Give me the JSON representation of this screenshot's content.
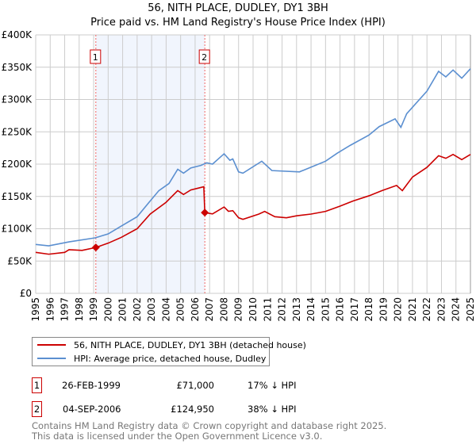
{
  "chart_data": {
    "type": "line",
    "title": "56, NITH PLACE, DUDLEY, DY1 3BH",
    "subtitle": "Price paid vs. HM Land Registry's House Price Index (HPI)",
    "xlim": [
      1995,
      2025
    ],
    "ylim": [
      0,
      400000
    ],
    "x_ticks": [
      "1995",
      "1996",
      "1997",
      "1998",
      "1999",
      "2000",
      "2001",
      "2002",
      "2003",
      "2004",
      "2005",
      "2006",
      "2007",
      "2008",
      "2009",
      "2010",
      "2011",
      "2012",
      "2013",
      "2014",
      "2015",
      "2016",
      "2017",
      "2018",
      "2019",
      "2020",
      "2021",
      "2022",
      "2023",
      "2024",
      "2025"
    ],
    "y_ticks": [
      {
        "v": 0,
        "label": "£0"
      },
      {
        "v": 50000,
        "label": "£50K"
      },
      {
        "v": 100000,
        "label": "£100K"
      },
      {
        "v": 150000,
        "label": "£150K"
      },
      {
        "v": 200000,
        "label": "£200K"
      },
      {
        "v": 250000,
        "label": "£250K"
      },
      {
        "v": 300000,
        "label": "£300K"
      },
      {
        "v": 350000,
        "label": "£350K"
      },
      {
        "v": 400000,
        "label": "£400K"
      }
    ],
    "grid": true,
    "series": [
      {
        "name": "56, NITH PLACE, DUDLEY, DY1 3BH (detached house)",
        "color": "#cc0000",
        "points": [
          [
            1995,
            63400
          ],
          [
            1995.9,
            60600
          ],
          [
            1997,
            63400
          ],
          [
            1997.3,
            67500
          ],
          [
            1998.2,
            66500
          ],
          [
            1999.15,
            71000
          ],
          [
            2000,
            77700
          ],
          [
            2000.9,
            86600
          ],
          [
            2002,
            100000
          ],
          [
            2002.9,
            122700
          ],
          [
            2004,
            141000
          ],
          [
            2004.8,
            159000
          ],
          [
            2005.2,
            153000
          ],
          [
            2005.7,
            160000
          ],
          [
            2006.6,
            165000
          ],
          [
            2006.67,
            124950
          ],
          [
            2007.2,
            123000
          ],
          [
            2008,
            133600
          ],
          [
            2008.3,
            127000
          ],
          [
            2008.6,
            128000
          ],
          [
            2009,
            117000
          ],
          [
            2009.3,
            114500
          ],
          [
            2010.4,
            122700
          ],
          [
            2010.8,
            126800
          ],
          [
            2011.5,
            118600
          ],
          [
            2012.3,
            117000
          ],
          [
            2013,
            120000
          ],
          [
            2014,
            122700
          ],
          [
            2015,
            126800
          ],
          [
            2016,
            135000
          ],
          [
            2016.9,
            143000
          ],
          [
            2018,
            151000
          ],
          [
            2018.9,
            159000
          ],
          [
            2019.9,
            167000
          ],
          [
            2020.3,
            159000
          ],
          [
            2021,
            180000
          ],
          [
            2022,
            195000
          ],
          [
            2022.8,
            213000
          ],
          [
            2023.3,
            209000
          ],
          [
            2023.8,
            215000
          ],
          [
            2024.4,
            207000
          ],
          [
            2025,
            215000
          ]
        ]
      },
      {
        "name": "HPI: Average price, detached house, Dudley",
        "color": "#5b8fd0",
        "points": [
          [
            1995,
            75700
          ],
          [
            1995.9,
            73600
          ],
          [
            1997.3,
            79700
          ],
          [
            1999.1,
            85900
          ],
          [
            2000,
            92000
          ],
          [
            2000.9,
            104000
          ],
          [
            2002,
            118600
          ],
          [
            2002.9,
            143000
          ],
          [
            2003.5,
            159000
          ],
          [
            2004.2,
            170000
          ],
          [
            2004.8,
            192000
          ],
          [
            2005.2,
            186000
          ],
          [
            2005.7,
            194000
          ],
          [
            2006.4,
            198000
          ],
          [
            2006.8,
            202000
          ],
          [
            2007.2,
            200000
          ],
          [
            2008,
            216000
          ],
          [
            2008.4,
            206000
          ],
          [
            2008.6,
            208000
          ],
          [
            2009,
            188000
          ],
          [
            2009.3,
            186000
          ],
          [
            2010.6,
            204500
          ],
          [
            2011.3,
            190000
          ],
          [
            2013.2,
            188000
          ],
          [
            2015,
            204500
          ],
          [
            2015.8,
            216800
          ],
          [
            2016.7,
            229000
          ],
          [
            2018,
            245000
          ],
          [
            2018.7,
            258000
          ],
          [
            2019.8,
            270000
          ],
          [
            2020.2,
            257000
          ],
          [
            2020.6,
            278000
          ],
          [
            2022,
            313000
          ],
          [
            2022.8,
            343600
          ],
          [
            2023.3,
            335000
          ],
          [
            2023.8,
            345600
          ],
          [
            2024.4,
            333000
          ],
          [
            2025,
            347600
          ]
        ]
      }
    ],
    "annotations": [
      {
        "label": "1",
        "x": 1999.15,
        "y": 71000
      },
      {
        "label": "2",
        "x": 2006.67,
        "y": 124950
      }
    ],
    "legend": "below"
  },
  "transactions": [
    {
      "num": "1",
      "date": "26-FEB-1999",
      "price": "£71,000",
      "hpi": "17% ↓ HPI"
    },
    {
      "num": "2",
      "date": "04-SEP-2006",
      "price": "£124,950",
      "hpi": "38% ↓ HPI"
    }
  ],
  "footer": {
    "line1": "Contains HM Land Registry data © Crown copyright and database right 2025.",
    "line2": "This data is licensed under the Open Government Licence v3.0."
  }
}
